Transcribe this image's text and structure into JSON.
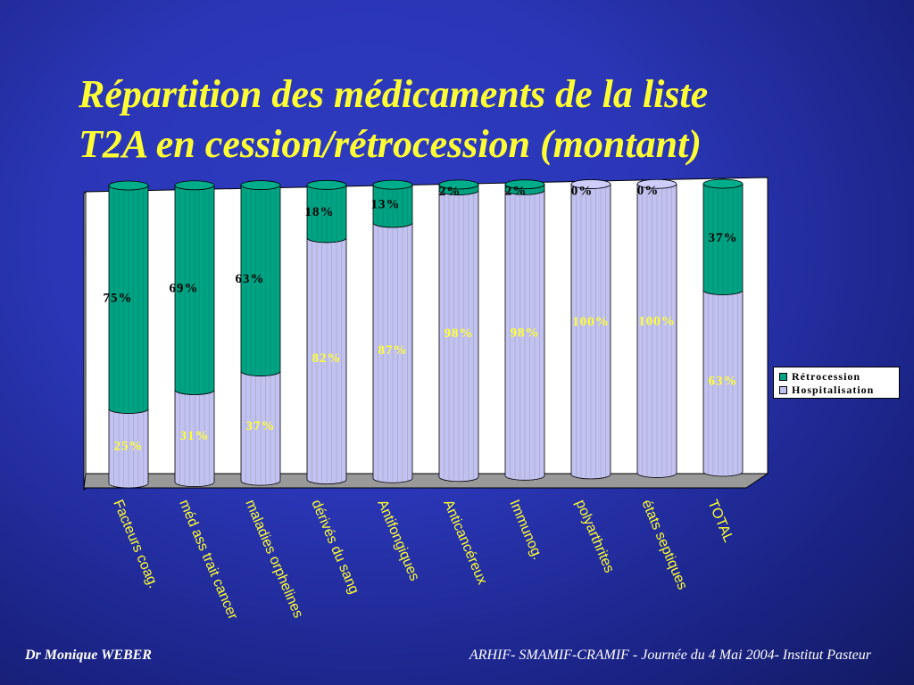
{
  "slide": {
    "title_line1": "Répartition des médicaments de la liste",
    "title_line2": "T2A en cession/rétrocession (montant)",
    "footer_left": "Dr Monique WEBER",
    "footer_right": "ARHIF- SMAMIF-CRAMIF - Journée du 4 Mai 2004- Institut Pasteur"
  },
  "colors": {
    "hospitalisation": "#c2c2f0",
    "retrocession": "#00a383",
    "label_dark": "#000000",
    "label_light": "#ffff33"
  },
  "chart_data": {
    "type": "bar",
    "stacked": true,
    "percent_stacked": true,
    "categories": [
      "Facteurs  coag.",
      "méd ass trait cancer",
      "maladies orphelines",
      "dérivés du sang",
      "Antifongiques",
      "Anticancéreux",
      "Immunog.",
      "polyarthrites",
      "états septiques",
      "TOTAL"
    ],
    "series": [
      {
        "name": "Hospitalisation",
        "values": [
          25,
          31,
          37,
          82,
          87,
          98,
          98,
          100,
          100,
          63
        ],
        "labels": [
          "25%",
          "31%",
          "37%",
          "82%",
          "87%",
          "98%",
          "98%",
          "100%",
          "100%",
          "63%"
        ]
      },
      {
        "name": "Rétrocession",
        "values": [
          75,
          69,
          63,
          18,
          13,
          2,
          2,
          0,
          0,
          37
        ],
        "labels": [
          "75%",
          "69%",
          "63%",
          "18%",
          "13%",
          "2%",
          "2%",
          "0%",
          "0%",
          "37%"
        ]
      }
    ],
    "ylim": [
      0,
      100
    ],
    "legend_position": "right"
  }
}
